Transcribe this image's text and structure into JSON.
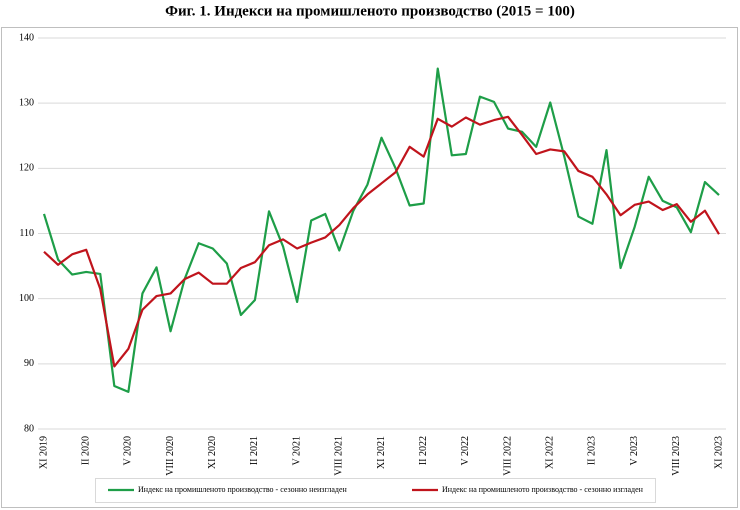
{
  "chart_data": {
    "type": "line",
    "title": "Фиг. 1. Индекси на промишленото производство (2015 = 100)",
    "categories": [
      "XI 2019",
      null,
      null,
      "II 2020",
      null,
      null,
      "V 2020",
      null,
      null,
      "VIII 2020",
      null,
      null,
      "XI 2020",
      null,
      null,
      "II 2021",
      null,
      null,
      "V 2021",
      null,
      null,
      "VIII 2021",
      null,
      null,
      "XI 2021",
      null,
      null,
      "II 2022",
      null,
      null,
      "V 2022",
      null,
      null,
      "VIII 2022",
      null,
      null,
      "XI 2022",
      null,
      null,
      "II 2023",
      null,
      null,
      "V 2023",
      null,
      null,
      "VIII 2023",
      null,
      null,
      "XI 2023"
    ],
    "series": [
      {
        "name": "Индекс на промишленото производство - сезонно неизгладен",
        "color": "#1e9e48",
        "values": [
          113.0,
          106.0,
          103.7,
          104.1,
          103.8,
          86.6,
          85.7,
          100.8,
          104.8,
          95.0,
          103.0,
          108.5,
          107.7,
          105.4,
          97.5,
          99.8,
          113.4,
          108.0,
          99.5,
          112.0,
          113.0,
          107.4,
          113.5,
          117.5,
          124.7,
          120.0,
          114.3,
          114.6,
          135.3,
          122.0,
          122.2,
          131.0,
          130.2,
          126.1,
          125.6,
          123.3,
          130.1,
          121.8,
          112.6,
          111.5,
          122.8,
          104.7,
          111.0,
          118.7,
          115.0,
          114.0,
          110.2,
          117.9,
          115.9
        ]
      },
      {
        "name": "Индекс на промишленото производство - сезонно изгладен",
        "color": "#c0141c",
        "values": [
          107.2,
          105.2,
          106.8,
          107.5,
          101.5,
          89.6,
          92.3,
          98.3,
          100.4,
          100.8,
          103.0,
          104.0,
          102.3,
          102.3,
          104.7,
          105.6,
          108.2,
          109.1,
          107.7,
          108.6,
          109.4,
          111.3,
          113.9,
          116.0,
          117.7,
          119.4,
          123.3,
          121.8,
          127.6,
          126.4,
          127.8,
          126.7,
          127.4,
          127.9,
          125.1,
          122.2,
          122.9,
          122.6,
          119.6,
          118.7,
          116.0,
          112.8,
          114.4,
          114.9,
          113.6,
          114.5,
          111.8,
          113.5,
          109.9
        ]
      }
    ],
    "ylim": [
      80,
      140
    ],
    "yticks": [
      80,
      90,
      100,
      110,
      120,
      130,
      140
    ],
    "grid": true,
    "legend": "bottom"
  }
}
